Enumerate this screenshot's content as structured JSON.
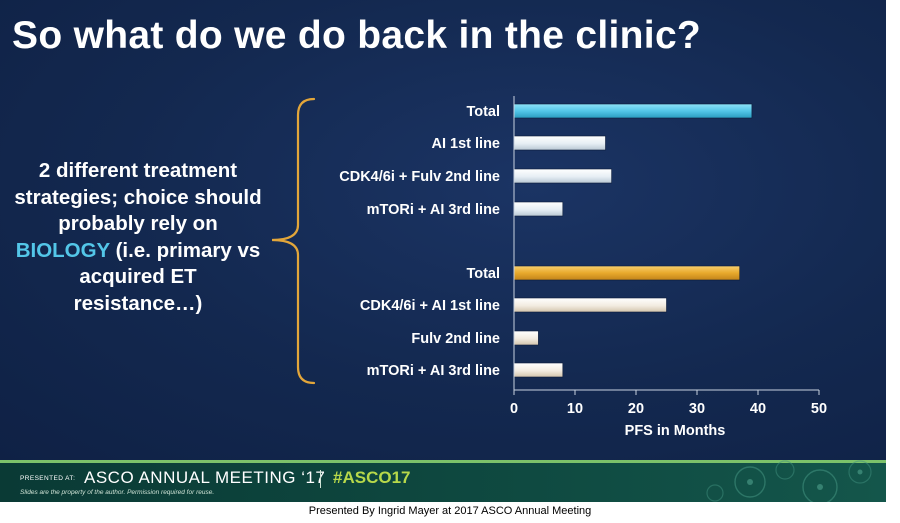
{
  "slide": {
    "title": "So what do we do back in the clinic?",
    "left_text": {
      "before": "2 different treatment strategies; choice should probably rely on ",
      "highlight": "BIOLOGY",
      "after": " (i.e. primary vs acquired ET resistance…)"
    }
  },
  "footer": {
    "presented_at": "PRESENTED AT:",
    "meeting": "ASCO ANNUAL MEETING ‘17",
    "hashtag": "#ASCO17",
    "disclaimer": "Slides are the property of the author. Permission required for reuse."
  },
  "presenter_caption": "Presented By Ingrid Mayer at 2017 ASCO Annual Meeting",
  "colors": {
    "background": "#13284f",
    "highlight_text": "#53c6e8",
    "bar_total_1": "#53c6e8",
    "bar_total_2": "#e8a92c",
    "bar_cool": "#e6eef4",
    "bar_warm": "#f2ebe0",
    "bracket": "#e3a63a"
  },
  "chart_data": {
    "type": "bar",
    "orientation": "horizontal",
    "categories": [
      "Total",
      "AI 1st line",
      "CDK4/6i + Fulv 2nd line",
      "mTORi + AI 3rd line",
      "Total",
      "CDK4/6i + AI 1st line",
      "Fulv 2nd line",
      "mTORi + AI 3rd line"
    ],
    "values": [
      39,
      15,
      16,
      8,
      37,
      25,
      4,
      8
    ],
    "groups": [
      [
        0,
        1,
        2,
        3
      ],
      [
        4,
        5,
        6,
        7
      ]
    ],
    "xlabel": "PFS in Months",
    "xlim": [
      0,
      50
    ],
    "xticks": [
      0,
      10,
      20,
      30,
      40,
      50
    ],
    "grid": false,
    "legend": "none"
  }
}
